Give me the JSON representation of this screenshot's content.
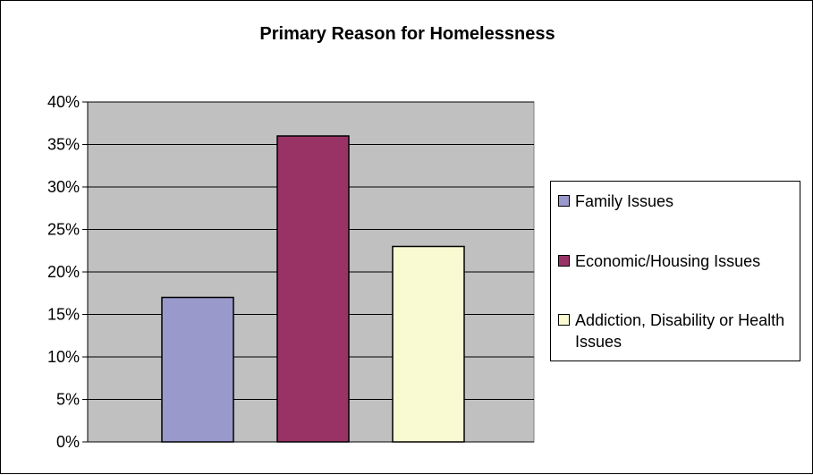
{
  "chart_data": {
    "type": "bar",
    "title": "Primary Reason for Homelessness",
    "xlabel": "",
    "ylabel": "",
    "ylim": [
      0,
      0.4
    ],
    "yticks": [
      "0%",
      "5%",
      "10%",
      "15%",
      "20%",
      "25%",
      "30%",
      "35%",
      "40%"
    ],
    "grid": true,
    "legend_position": "right",
    "series": [
      {
        "name": "Family Issues",
        "value": 0.17,
        "color": "#9999cc"
      },
      {
        "name": "Economic/Housing Issues",
        "value": 0.36,
        "color": "#993366"
      },
      {
        "name": "Addiction, Disability or Health Issues",
        "value": 0.23,
        "color": "#fafad2"
      }
    ],
    "plot_background": "#c0c0c0"
  }
}
